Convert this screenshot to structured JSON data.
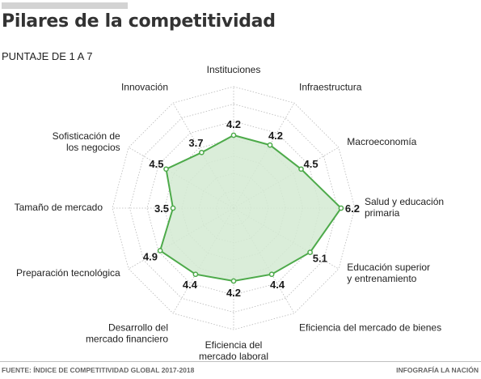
{
  "header": {
    "title": "Pilares de la competitividad",
    "subtitle": "PUNTAJE DE 1 A 7"
  },
  "footer": {
    "source": "FUENTE: ÍNDICE DE COMPETITIVIDAD GLOBAL 2017-2018",
    "credit": "INFOGRAFÍA LA NACIÓN"
  },
  "colors": {
    "series_stroke": "#4daa4a",
    "series_fill": "#d4ead2",
    "grid": "#b8b8b8"
  },
  "chart_data": {
    "type": "radar",
    "title": "Pilares de la competitividad",
    "subtitle": "PUNTAJE DE 1 A 7",
    "scale_min": 0,
    "scale_max": 7,
    "grid": true,
    "categories": [
      [
        "Instituciones"
      ],
      [
        "Infraestructura"
      ],
      [
        "Macroeconomía"
      ],
      [
        "Salud y educación",
        "primaria"
      ],
      [
        "Educación superior",
        "y entrenamiento"
      ],
      [
        "Eficiencia del mercado de bienes"
      ],
      [
        "Eficiencia del",
        "mercado laboral"
      ],
      [
        "Desarrollo del",
        "mercado financiero"
      ],
      [
        "Preparación tecnológica"
      ],
      [
        "Tamaño de mercado"
      ],
      [
        "Sofisticación de",
        "los negocios"
      ],
      [
        "Innovación"
      ]
    ],
    "series": [
      {
        "values": [
          4.2,
          4.2,
          4.5,
          6.2,
          5.1,
          4.4,
          4.2,
          4.4,
          4.9,
          3.5,
          4.5,
          3.7
        ],
        "value_labels": [
          "4.2",
          "4.2",
          "4.5",
          "6.2",
          "5.1",
          "4.4",
          "4.2",
          "4.4",
          "4.9",
          "3.5",
          "4.5",
          "3.7"
        ]
      }
    ]
  }
}
